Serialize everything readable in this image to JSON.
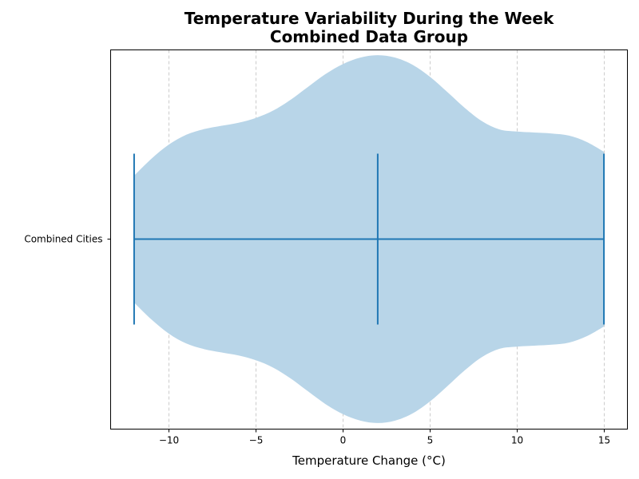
{
  "title_line1": "Temperature Variability During the Week",
  "title_line2": "Combined Data Group",
  "chart_data": {
    "type": "violin",
    "title": "Temperature Variability During the Week\nCombined Data Group",
    "xlabel": "Temperature Change (°C)",
    "ylabel": "",
    "orientation": "horizontal",
    "xlim": [
      -13.35,
      16.35
    ],
    "xticks": [
      -10,
      -5,
      0,
      5,
      10,
      15
    ],
    "xtick_labels": [
      "−10",
      "−5",
      "0",
      "5",
      "10",
      "15"
    ],
    "categories": [
      "Combined Cities"
    ],
    "series": [
      {
        "min": -12,
        "median": 2,
        "max": 15,
        "density_profile": {
          "x": [
            -12,
            -11,
            -10,
            -9,
            -8,
            -7,
            -6,
            -5,
            -4,
            -3,
            -2,
            -1,
            0,
            1,
            2,
            3,
            4,
            5,
            6,
            7,
            8,
            9,
            10,
            11,
            12,
            13,
            14,
            15
          ],
          "half_width": [
            0.265,
            0.336,
            0.395,
            0.436,
            0.459,
            0.473,
            0.486,
            0.506,
            0.537,
            0.582,
            0.636,
            0.689,
            0.731,
            0.758,
            0.768,
            0.758,
            0.728,
            0.678,
            0.614,
            0.548,
            0.492,
            0.458,
            0.449,
            0.445,
            0.441,
            0.432,
            0.406,
            0.365
          ]
        }
      }
    ],
    "grid": {
      "x": true,
      "y": false
    },
    "colors": {
      "violin_fill": "#b8d5e8",
      "stats_lines": "#1f77b4",
      "grid": "#cccccc"
    }
  }
}
